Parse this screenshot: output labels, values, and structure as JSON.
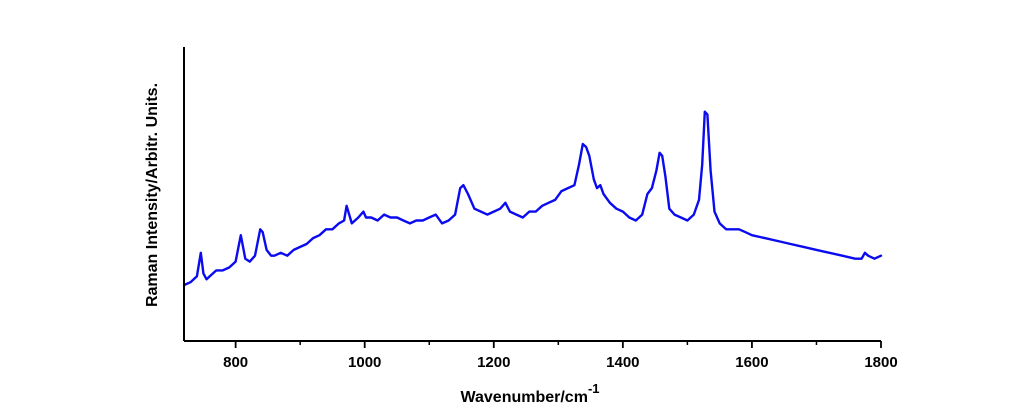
{
  "chart_data": {
    "type": "line",
    "title": "",
    "xlabel": "Wavenumber/cm",
    "xlabel_superscript": "-1",
    "ylabel": "Raman Intensity/Arbitr. Units.",
    "xlim": [
      720,
      1800
    ],
    "ylim": [
      0,
      100
    ],
    "x_ticks": [
      800,
      1000,
      1200,
      1400,
      1600,
      1800
    ],
    "x_minor_step": 100,
    "y_ticks_shown": false,
    "grid": false,
    "legend": "none",
    "colors": {
      "line": "#0b0bef",
      "axis": "#000000"
    },
    "series": [
      {
        "x": [
          720,
          730,
          740,
          746,
          750,
          755,
          760,
          770,
          780,
          790,
          800,
          808,
          815,
          822,
          830,
          838,
          842,
          848,
          855,
          860,
          870,
          880,
          890,
          900,
          910,
          920,
          930,
          940,
          950,
          960,
          968,
          972,
          980,
          990,
          998,
          1002,
          1010,
          1020,
          1030,
          1040,
          1050,
          1060,
          1070,
          1080,
          1090,
          1100,
          1110,
          1120,
          1130,
          1140,
          1148,
          1153,
          1160,
          1170,
          1180,
          1190,
          1200,
          1210,
          1218,
          1225,
          1235,
          1245,
          1255,
          1265,
          1275,
          1285,
          1295,
          1305,
          1315,
          1325,
          1332,
          1338,
          1343,
          1348,
          1355,
          1360,
          1365,
          1370,
          1380,
          1390,
          1400,
          1410,
          1420,
          1430,
          1438,
          1445,
          1452,
          1457,
          1461,
          1466,
          1472,
          1480,
          1490,
          1500,
          1510,
          1518,
          1523,
          1527,
          1531,
          1536,
          1542,
          1550,
          1560,
          1570,
          1580,
          1590,
          1600,
          1620,
          1640,
          1660,
          1680,
          1700,
          1720,
          1740,
          1760,
          1770,
          1775,
          1780,
          1790,
          1800
        ],
        "y": [
          19,
          20,
          22,
          30,
          23,
          21,
          22,
          24,
          24,
          25,
          27,
          36,
          28,
          27,
          29,
          38,
          37,
          31,
          29,
          29,
          30,
          29,
          31,
          32,
          33,
          35,
          36,
          38,
          38,
          40,
          41,
          46,
          40,
          42,
          44,
          42,
          42,
          41,
          43,
          42,
          42,
          41,
          40,
          41,
          41,
          42,
          43,
          40,
          41,
          43,
          52,
          53,
          50,
          45,
          44,
          43,
          44,
          45,
          47,
          44,
          43,
          42,
          44,
          44,
          46,
          47,
          48,
          51,
          52,
          53,
          60,
          67,
          66,
          63,
          55,
          52,
          53,
          50,
          47,
          45,
          44,
          42,
          41,
          43,
          50,
          52,
          58,
          64,
          63,
          56,
          45,
          43,
          42,
          41,
          43,
          48,
          60,
          78,
          77,
          58,
          44,
          40,
          38,
          38,
          38,
          37,
          36,
          35,
          34,
          33,
          32,
          31,
          30,
          29,
          28,
          28,
          30,
          29,
          28,
          29
        ]
      }
    ]
  }
}
